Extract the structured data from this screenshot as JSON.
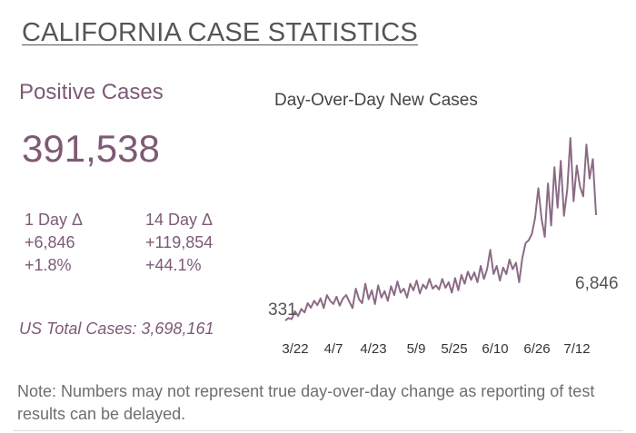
{
  "header": {
    "title": "CALIFORNIA CASE STATISTICS"
  },
  "summary": {
    "positive_label": "Positive Cases",
    "positive_value": "391,538",
    "one_day": {
      "heading": "1 Day Δ",
      "change": "+6,846",
      "percent": "+1.8%"
    },
    "fourteen_day": {
      "heading": "14 Day Δ",
      "change": "+119,854",
      "percent": "+44.1%"
    },
    "us_total": "US Total Cases: 3,698,161"
  },
  "note": "Note: Numbers may not represent true day-over-day change as reporting of test results can be delayed.",
  "colors": {
    "accent": "#7d5a76",
    "line": "#8b6b85"
  },
  "chart_data": {
    "type": "line",
    "title": "Day-Over-Day New Cases",
    "xlabel": "",
    "ylabel": "",
    "x_ticks": [
      "3/22",
      "4/7",
      "4/23",
      "5/9",
      "5/25",
      "6/10",
      "6/26",
      "7/12"
    ],
    "start_label": "331",
    "end_label": "6,846",
    "ylim": [
      0,
      12000
    ],
    "grid": false,
    "series": [
      {
        "values": [
          331,
          480,
          420,
          900,
          610,
          1050,
          830,
          1400,
          1120,
          1550,
          1280,
          1700,
          1100,
          1900,
          1550,
          1350,
          1800,
          1250,
          1700,
          1900,
          1500,
          1100,
          2300,
          1650,
          1400,
          2600,
          1650,
          2200,
          1350,
          2500,
          1750,
          2150,
          1550,
          2450,
          1900,
          2750,
          2050,
          2300,
          1750,
          2600,
          2200,
          2800,
          2000,
          2550,
          2300,
          2900,
          2300,
          2500,
          2250,
          2900,
          2350,
          2700,
          2050,
          2950,
          2200,
          3150,
          2600,
          3350,
          2850,
          3300,
          2700,
          3700,
          2900,
          3500,
          4700,
          3200,
          3700,
          2800,
          3600,
          3200,
          4100,
          3500,
          3900,
          2700,
          4200,
          5100,
          5300,
          5700,
          6700,
          8500,
          6600,
          5500,
          8800,
          6200,
          9800,
          7300,
          10200,
          6800,
          8400,
          11600,
          7700,
          9900,
          8600,
          8000,
          11200,
          9100,
          10300,
          6846
        ]
      }
    ]
  }
}
